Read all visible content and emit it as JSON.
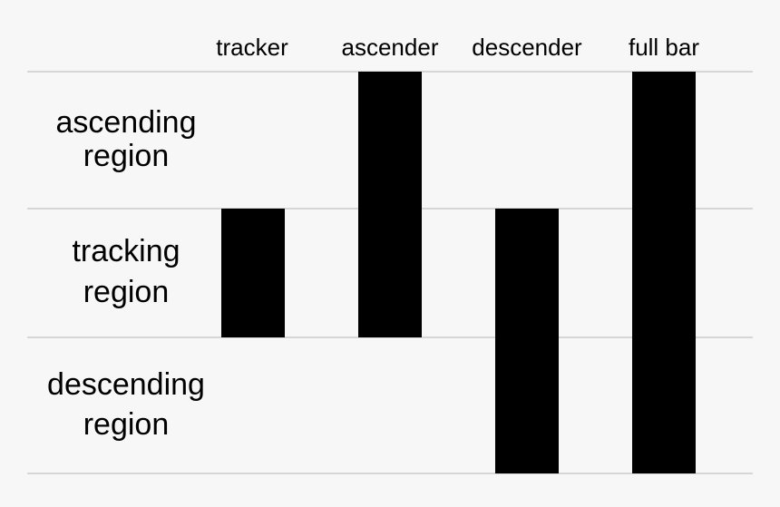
{
  "columns": [
    "tracker",
    "ascender",
    "descender",
    "full bar"
  ],
  "rows": [
    {
      "label": [
        "ascending",
        "region"
      ]
    },
    {
      "label": [
        "tracking",
        "region"
      ]
    },
    {
      "label": [
        "descending",
        "region"
      ]
    }
  ]
}
